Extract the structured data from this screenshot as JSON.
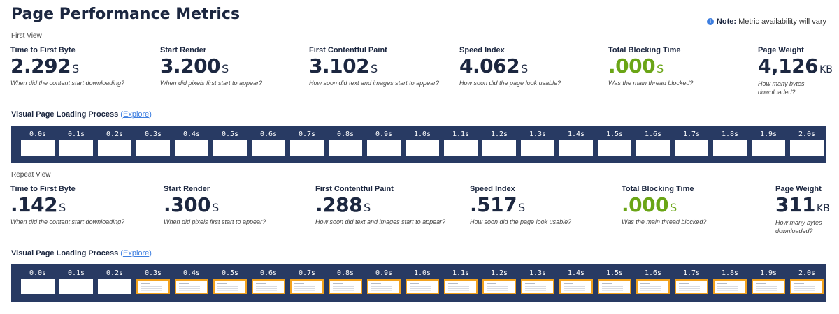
{
  "page_title": "Page Performance Metrics",
  "note": {
    "label": "Note:",
    "text": "Metric availability will vary"
  },
  "views": [
    {
      "label": "First View",
      "metrics": [
        {
          "label": "Time to First Byte",
          "value": "2.292",
          "unit": "S",
          "desc": "When did the content start downloading?"
        },
        {
          "label": "Start Render",
          "value": "3.200",
          "unit": "S",
          "desc": "When did pixels first start to appear?"
        },
        {
          "label": "First Contentful Paint",
          "value": "3.102",
          "unit": "S",
          "desc": "How soon did text and images start to appear?"
        },
        {
          "label": "Speed Index",
          "value": "4.062",
          "unit": "S",
          "desc": "How soon did the page look usable?"
        },
        {
          "label": "Total Blocking Time",
          "value": ".000",
          "unit": "S",
          "desc": "Was the main thread blocked?",
          "good": true
        },
        {
          "label": "Page Weight",
          "value": "4,126",
          "unit": "KB",
          "desc": "How many bytes downloaded?"
        }
      ],
      "process_label": "Visual Page Loading Process",
      "explore_label": "Explore",
      "frames": [
        {
          "time": "0.0s",
          "changed": false
        },
        {
          "time": "0.1s",
          "changed": false
        },
        {
          "time": "0.2s",
          "changed": false
        },
        {
          "time": "0.3s",
          "changed": false
        },
        {
          "time": "0.4s",
          "changed": false
        },
        {
          "time": "0.5s",
          "changed": false
        },
        {
          "time": "0.6s",
          "changed": false
        },
        {
          "time": "0.7s",
          "changed": false
        },
        {
          "time": "0.8s",
          "changed": false
        },
        {
          "time": "0.9s",
          "changed": false
        },
        {
          "time": "1.0s",
          "changed": false
        },
        {
          "time": "1.1s",
          "changed": false
        },
        {
          "time": "1.2s",
          "changed": false
        },
        {
          "time": "1.3s",
          "changed": false
        },
        {
          "time": "1.4s",
          "changed": false
        },
        {
          "time": "1.5s",
          "changed": false
        },
        {
          "time": "1.6s",
          "changed": false
        },
        {
          "time": "1.7s",
          "changed": false
        },
        {
          "time": "1.8s",
          "changed": false
        },
        {
          "time": "1.9s",
          "changed": false
        },
        {
          "time": "2.0s",
          "changed": false
        }
      ]
    },
    {
      "label": "Repeat View",
      "metrics": [
        {
          "label": "Time to First Byte",
          "value": ".142",
          "unit": "S",
          "desc": "When did the content start downloading?"
        },
        {
          "label": "Start Render",
          "value": ".300",
          "unit": "S",
          "desc": "When did pixels first start to appear?"
        },
        {
          "label": "First Contentful Paint",
          "value": ".288",
          "unit": "S",
          "desc": "How soon did text and images start to appear?"
        },
        {
          "label": "Speed Index",
          "value": ".517",
          "unit": "S",
          "desc": "How soon did the page look usable?"
        },
        {
          "label": "Total Blocking Time",
          "value": ".000",
          "unit": "S",
          "desc": "Was the main thread blocked?",
          "good": true
        },
        {
          "label": "Page Weight",
          "value": "311",
          "unit": "KB",
          "desc": "How many bytes downloaded?"
        }
      ],
      "process_label": "Visual Page Loading Process",
      "explore_label": "Explore",
      "frames": [
        {
          "time": "0.0s",
          "changed": false
        },
        {
          "time": "0.1s",
          "changed": false
        },
        {
          "time": "0.2s",
          "changed": false
        },
        {
          "time": "0.3s",
          "changed": true
        },
        {
          "time": "0.4s",
          "changed": true
        },
        {
          "time": "0.5s",
          "changed": true
        },
        {
          "time": "0.6s",
          "changed": true
        },
        {
          "time": "0.7s",
          "changed": true
        },
        {
          "time": "0.8s",
          "changed": true
        },
        {
          "time": "0.9s",
          "changed": true
        },
        {
          "time": "1.0s",
          "changed": true
        },
        {
          "time": "1.1s",
          "changed": true
        },
        {
          "time": "1.2s",
          "changed": true
        },
        {
          "time": "1.3s",
          "changed": true
        },
        {
          "time": "1.4s",
          "changed": true
        },
        {
          "time": "1.5s",
          "changed": true
        },
        {
          "time": "1.6s",
          "changed": true
        },
        {
          "time": "1.7s",
          "changed": true
        },
        {
          "time": "1.8s",
          "changed": true
        },
        {
          "time": "1.9s",
          "changed": true
        },
        {
          "time": "2.0s",
          "changed": true
        }
      ]
    }
  ],
  "colors": {
    "accent_green": "#6aa516",
    "filmstrip_bg": "#283a63",
    "changed_frame_border": "#f2a21e",
    "link": "#3d7ee0"
  },
  "icons": {
    "note": "info-icon"
  }
}
